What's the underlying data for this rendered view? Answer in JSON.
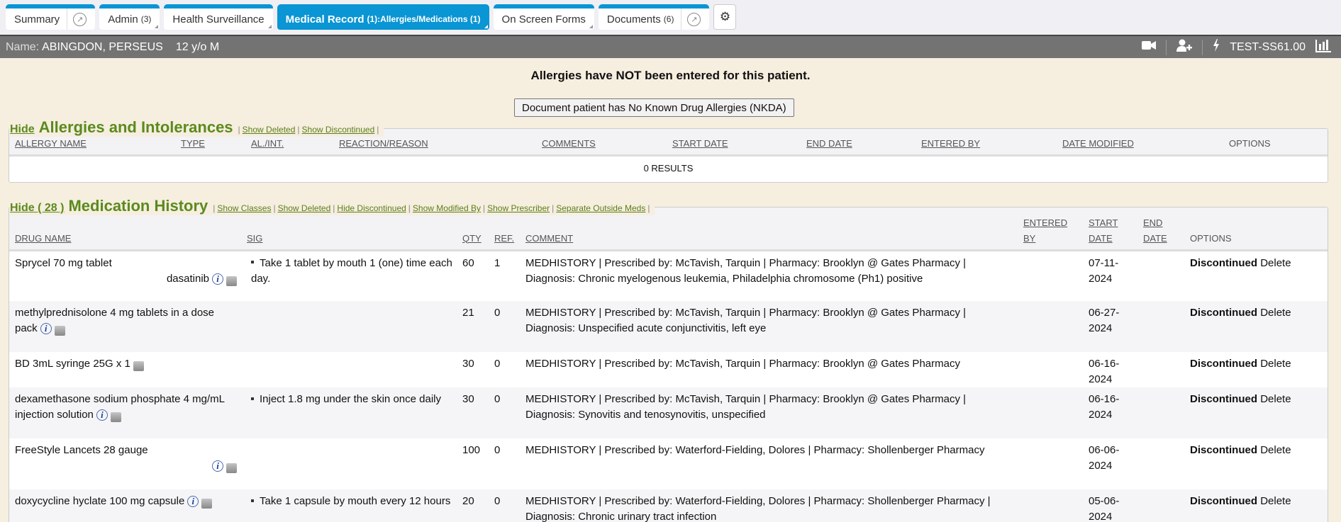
{
  "tabs": [
    {
      "label": "Summary",
      "count": "",
      "external": true,
      "active": false
    },
    {
      "label": "Admin",
      "count": "(3)",
      "external": false,
      "active": false
    },
    {
      "label": "Health Surveillance",
      "count": "",
      "external": false,
      "active": false
    },
    {
      "label": "Medical Record",
      "count": "(1):Allergies/Medications (1)",
      "external": false,
      "active": true
    },
    {
      "label": "On Screen Forms",
      "count": "",
      "external": false,
      "active": false
    },
    {
      "label": "Documents",
      "count": "(6)",
      "external": true,
      "active": false
    }
  ],
  "patient": {
    "name_label": "Name:",
    "name": "ABINGDON, PERSEUS",
    "age_sex": "12 y/o M",
    "station": "TEST-SS61.00"
  },
  "allergy_notice": "Allergies have NOT been entered for this patient.",
  "nkda_button": "Document patient has No Known Drug Allergies (NKDA)",
  "allergies": {
    "hide": "Hide",
    "title": "Allergies and Intolerances",
    "links": [
      "Show Deleted",
      "Show Discontinued"
    ],
    "columns": [
      "ALLERGY NAME",
      "TYPE",
      "AL./INT.",
      "REACTION/REASON",
      "COMMENTS",
      "START DATE",
      "END DATE",
      "ENTERED BY",
      "DATE MODIFIED",
      "OPTIONS"
    ],
    "results": "0 RESULTS"
  },
  "medications": {
    "hide": "Hide ( 28 )",
    "title": "Medication History",
    "links": [
      "Show Classes",
      "Show Deleted",
      "Hide Discontinued",
      "Show Modified By",
      "Show Prescriber",
      "Separate Outside Meds"
    ],
    "columns": {
      "drug": "DRUG NAME",
      "sig": "SIG",
      "qty": "QTY",
      "ref": "REF.",
      "comment": "COMMENT",
      "entered1": "ENTERED",
      "entered2": "BY",
      "start1": "START",
      "start2": "DATE",
      "end1": "END",
      "end2": "DATE",
      "options": "OPTIONS"
    },
    "rows": [
      {
        "drug": "Sprycel 70 mg tablet",
        "generic": "dasatinib",
        "sig": "Take 1 tablet by mouth 1 (one) time each day.",
        "qty": "60",
        "ref": "1",
        "comment": "MEDHISTORY | Prescribed by: McTavish, Tarquin | Pharmacy: Brooklyn @ Gates Pharmacy | Diagnosis: Chronic myelogenous leukemia, Philadelphia chromosome (Ph1) positive",
        "entered": "",
        "start": "07-11-2024",
        "end": "",
        "status": "Discontinued",
        "delete": "Delete",
        "info": true
      },
      {
        "drug": "methylprednisolone 4 mg tablets in a dose pack",
        "generic": "",
        "sig": "",
        "qty": "21",
        "ref": "0",
        "comment": "MEDHISTORY | Prescribed by: McTavish, Tarquin | Pharmacy: Brooklyn @ Gates Pharmacy | Diagnosis: Unspecified acute conjunctivitis, left eye",
        "entered": "",
        "start": "06-27-2024",
        "end": "",
        "status": "Discontinued",
        "delete": "Delete",
        "info": true
      },
      {
        "drug": "BD 3mL syringe 25G x 1",
        "generic": "",
        "sig": "",
        "qty": "30",
        "ref": "0",
        "comment": "MEDHISTORY | Prescribed by: McTavish, Tarquin | Pharmacy: Brooklyn @ Gates Pharmacy",
        "entered": "",
        "start": "06-16-2024",
        "end": "",
        "status": "Discontinued",
        "delete": "Delete",
        "info": false
      },
      {
        "drug": "dexamethasone sodium phosphate 4 mg/mL injection solution",
        "generic": "",
        "sig": "Inject 1.8 mg under the skin once daily",
        "qty": "30",
        "ref": "0",
        "comment": "MEDHISTORY | Prescribed by: McTavish, Tarquin | Pharmacy: Brooklyn @ Gates Pharmacy | Diagnosis: Synovitis and tenosynovitis, unspecified",
        "entered": "",
        "start": "06-16-2024",
        "end": "",
        "status": "Discontinued",
        "delete": "Delete",
        "info": true
      },
      {
        "drug": "FreeStyle Lancets 28 gauge",
        "generic": "",
        "sig": "",
        "qty": "100",
        "ref": "0",
        "comment": "MEDHISTORY | Prescribed by: Waterford-Fielding, Dolores | Pharmacy: Shollenberger Pharmacy",
        "entered": "",
        "start": "06-06-2024",
        "end": "",
        "status": "Discontinued",
        "delete": "Delete",
        "info": true
      },
      {
        "drug": "doxycycline hyclate 100 mg capsule",
        "generic": "",
        "sig": "Take 1 capsule by mouth every 12 hours",
        "qty": "20",
        "ref": "0",
        "comment": "MEDHISTORY | Prescribed by: Waterford-Fielding, Dolores | Pharmacy: Shollenberger Pharmacy | Diagnosis: Chronic urinary tract infection",
        "entered": "",
        "start": "05-06-2024",
        "end": "",
        "status": "Discontinued",
        "delete": "Delete",
        "info": true
      }
    ]
  },
  "colors": {
    "accent": "#0a95d4",
    "section_green": "#5b8a1e",
    "patient_bar": "#737373",
    "page_bg": "#f6eedf"
  }
}
